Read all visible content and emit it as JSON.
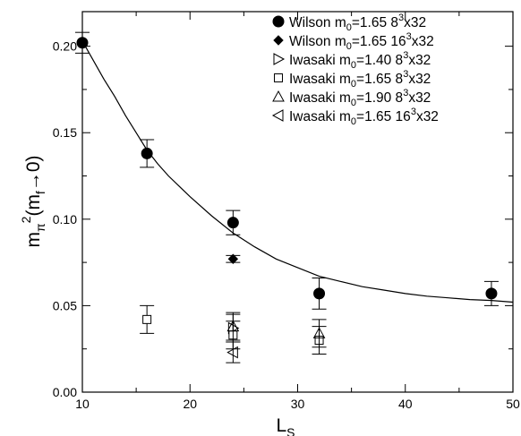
{
  "chart_data": {
    "type": "scatter",
    "xlim": [
      10,
      50
    ],
    "ylim": [
      0.0,
      0.22
    ],
    "x_ticks": [
      10,
      20,
      30,
      40,
      50
    ],
    "y_ticks": [
      0.0,
      0.05,
      0.1,
      0.15,
      0.2
    ],
    "x_tick_labels": [
      "10",
      "20",
      "30",
      "40",
      "50"
    ],
    "y_tick_labels": [
      "0.00",
      "0.05",
      "0.10",
      "0.15",
      "0.20"
    ],
    "xlabel": {
      "main": "L",
      "sub": "S"
    },
    "ylabel": {
      "main": "m",
      "sub1": "π",
      "sup": "2",
      "paren_open": "(m",
      "sub2": "f",
      "arrow": "→0)"
    },
    "legend_position": "top-right",
    "grid": false,
    "series": [
      {
        "name": "Wilson m0=1.65 8^3x32",
        "legend": {
          "pre": "Wilson m",
          "sub": "0",
          "mid": "=1.65 8",
          "sup": "3",
          "post": "x32"
        },
        "marker": "circle-filled",
        "points": [
          {
            "x": 10,
            "y": 0.202,
            "err": 0.006
          },
          {
            "x": 16,
            "y": 0.138,
            "err": 0.008
          },
          {
            "x": 24,
            "y": 0.098,
            "err": 0.007
          },
          {
            "x": 32,
            "y": 0.057,
            "err": 0.009
          },
          {
            "x": 48,
            "y": 0.057,
            "err": 0.007
          }
        ]
      },
      {
        "name": "Wilson m0=1.65 16^3x32",
        "legend": {
          "pre": "Wilson m",
          "sub": "0",
          "mid": "=1.65 16",
          "sup": "3",
          "post": "x32"
        },
        "marker": "diamond-filled",
        "points": [
          {
            "x": 24,
            "y": 0.077,
            "err": 0.002
          }
        ]
      },
      {
        "name": "Iwasaki m0=1.40 8^3x32",
        "legend": {
          "pre": "Iwasaki m",
          "sub": "0",
          "mid": "=1.40 8",
          "sup": "3",
          "post": "x32"
        },
        "marker": "triangle-right-open",
        "points": [
          {
            "x": 24,
            "y": 0.037,
            "err": 0.008
          }
        ]
      },
      {
        "name": "Iwasaki m0=1.65 8^3x32",
        "legend": {
          "pre": "Iwasaki m",
          "sub": "0",
          "mid": "=1.65 8",
          "sup": "3",
          "post": "x32"
        },
        "marker": "square-open",
        "points": [
          {
            "x": 16,
            "y": 0.042,
            "err": 0.008
          },
          {
            "x": 24,
            "y": 0.033,
            "err": 0.008
          },
          {
            "x": 32,
            "y": 0.03,
            "err": 0.008
          }
        ]
      },
      {
        "name": "Iwasaki m0=1.90 8^3x32",
        "legend": {
          "pre": "Iwasaki m",
          "sub": "0",
          "mid": "=1.90 8",
          "sup": "3",
          "post": "x32"
        },
        "marker": "triangle-up-open",
        "points": [
          {
            "x": 24,
            "y": 0.038,
            "err": 0.008
          },
          {
            "x": 32,
            "y": 0.034,
            "err": 0.008
          }
        ]
      },
      {
        "name": "Iwasaki m0=1.65 16^3x32",
        "legend": {
          "pre": "Iwasaki m",
          "sub": "0",
          "mid": "=1.65 16",
          "sup": "3",
          "post": "x32"
        },
        "marker": "triangle-left-open",
        "points": [
          {
            "x": 24,
            "y": 0.023,
            "err": 0.006
          }
        ]
      }
    ],
    "fit_curve": {
      "points": [
        [
          10,
          0.203
        ],
        [
          11,
          0.192
        ],
        [
          12,
          0.181
        ],
        [
          13,
          0.171
        ],
        [
          14,
          0.16
        ],
        [
          15,
          0.15
        ],
        [
          16,
          0.14
        ],
        [
          17,
          0.132
        ],
        [
          18,
          0.125
        ],
        [
          19,
          0.119
        ],
        [
          20,
          0.113
        ],
        [
          22,
          0.102
        ],
        [
          24,
          0.092
        ],
        [
          26,
          0.084
        ],
        [
          28,
          0.077
        ],
        [
          30,
          0.072
        ],
        [
          32,
          0.067
        ],
        [
          34,
          0.064
        ],
        [
          36,
          0.061
        ],
        [
          38,
          0.059
        ],
        [
          40,
          0.057
        ],
        [
          42,
          0.0555
        ],
        [
          44,
          0.0545
        ],
        [
          46,
          0.0535
        ],
        [
          48,
          0.053
        ],
        [
          50,
          0.052
        ]
      ]
    }
  }
}
